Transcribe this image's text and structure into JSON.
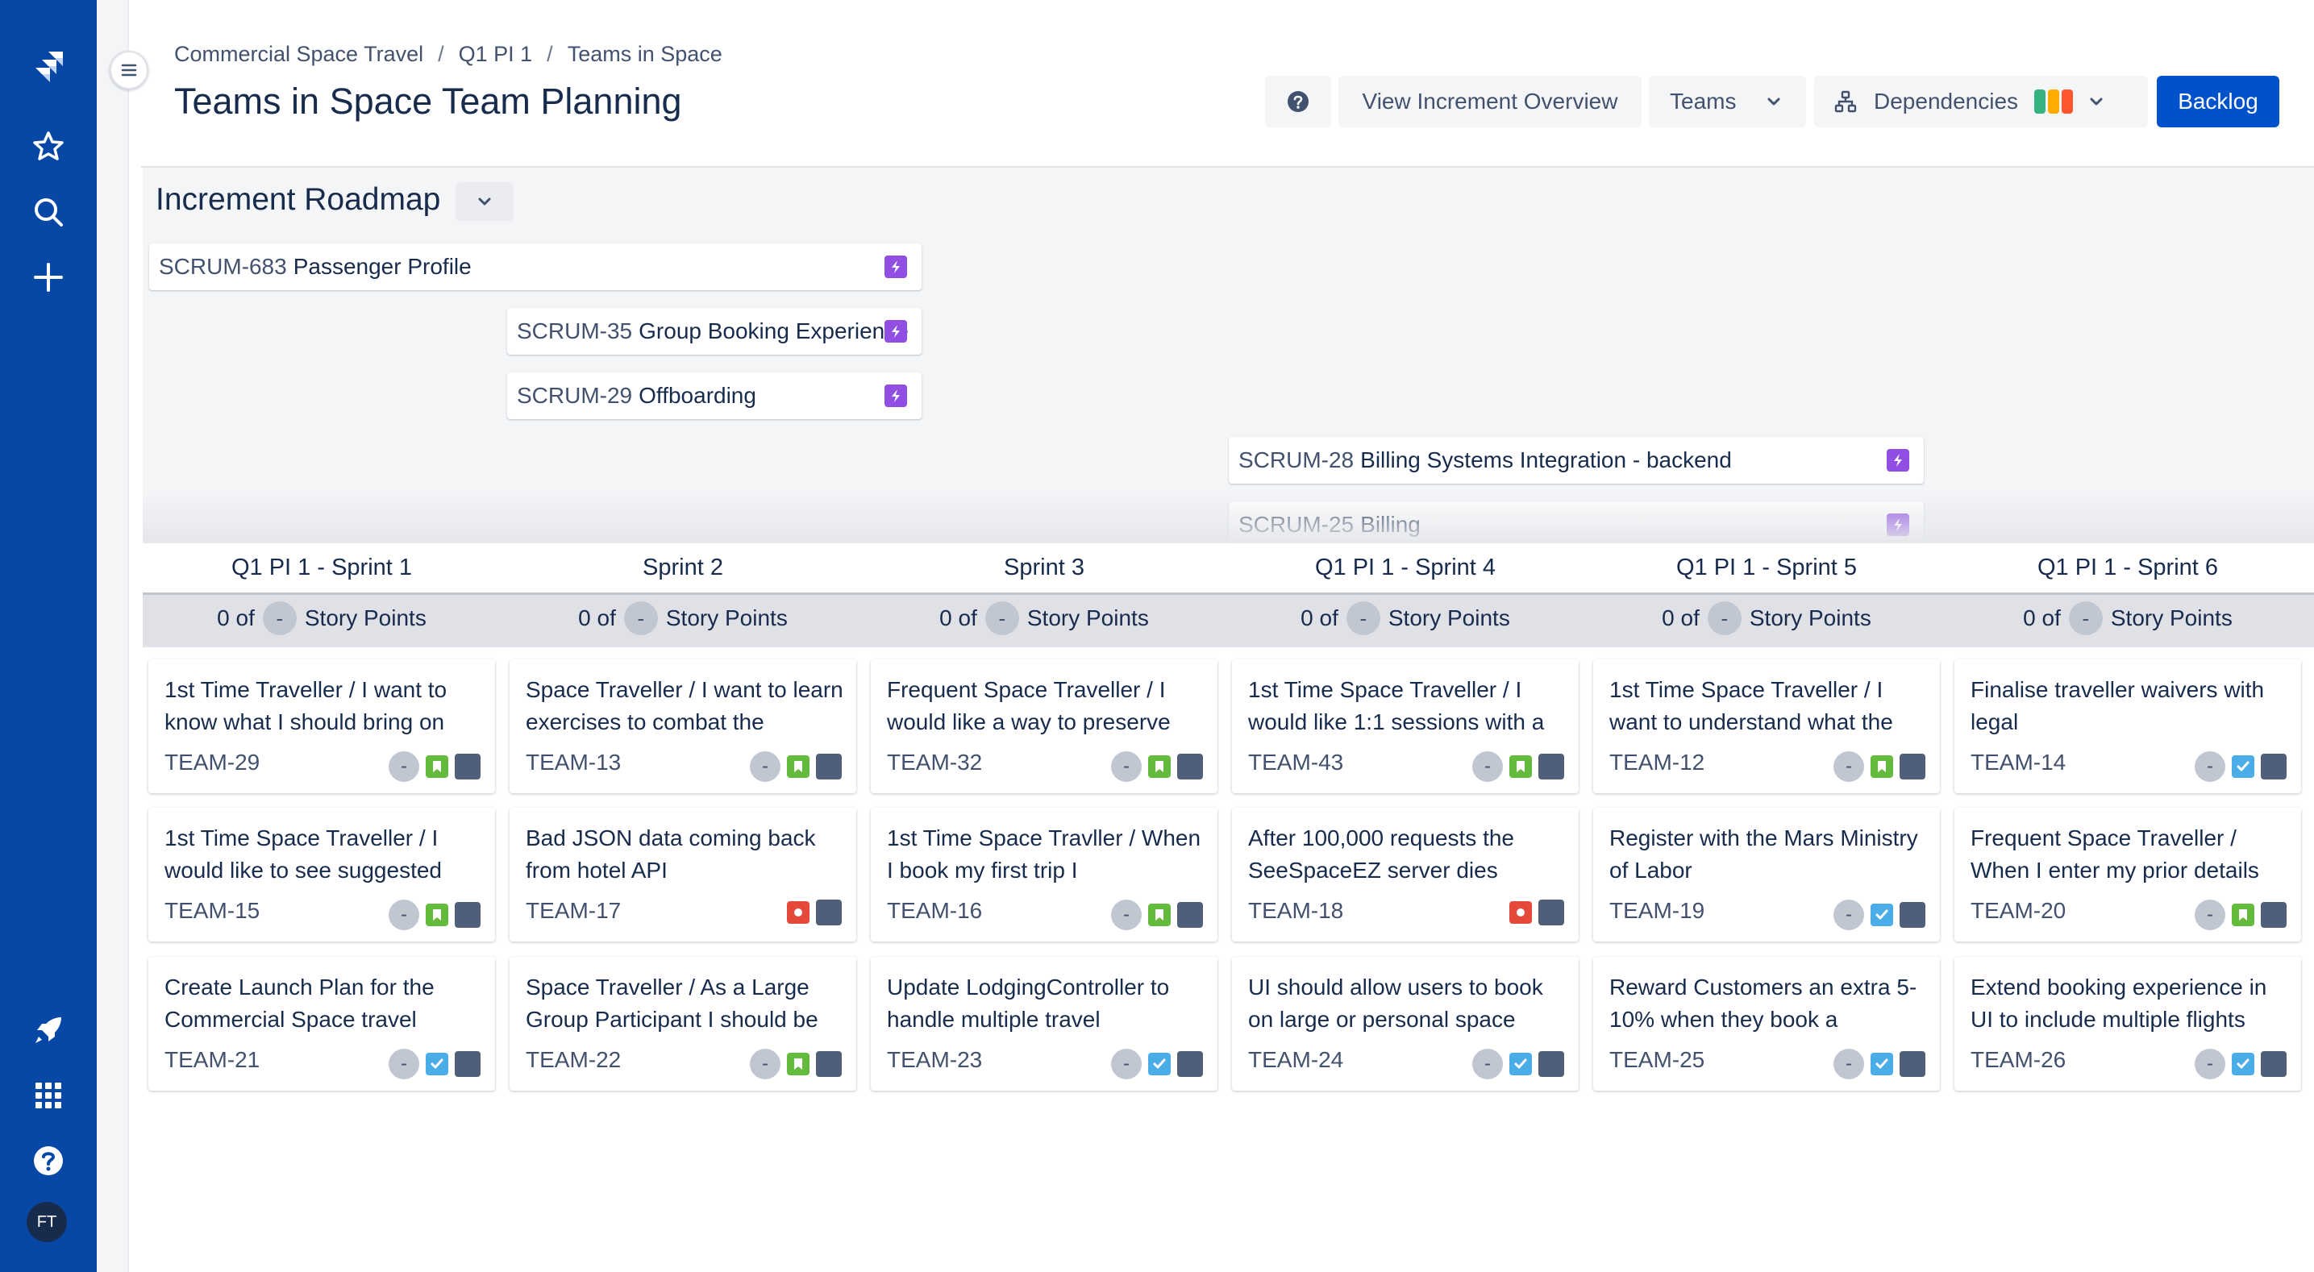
{
  "breadcrumb": [
    "Commercial Space Travel",
    "Q1 PI 1",
    "Teams in Space"
  ],
  "page_title": "Teams in Space Team Planning",
  "header_buttons": {
    "help_icon": "question-icon",
    "overview": "View Increment Overview",
    "teams": "Teams",
    "dependencies": "Dependencies",
    "backlog": "Backlog"
  },
  "dependency_colors": [
    "#36b37e",
    "#ffab00",
    "#ff5630"
  ],
  "accent_color": "#0052cc",
  "nav_color": "#0747a6",
  "avatar_initials": "FT",
  "roadmap": {
    "title": "Increment Roadmap",
    "epics": [
      {
        "key": "SCRUM-683",
        "name": "Passenger Profile"
      },
      {
        "key": "SCRUM-35",
        "name": "Group Booking Experience"
      },
      {
        "key": "SCRUM-29",
        "name": "Offboarding"
      },
      {
        "key": "SCRUM-28",
        "name": "Billing Systems Integration - backend"
      },
      {
        "key": "SCRUM-25",
        "name": "Billing"
      }
    ]
  },
  "points_text": {
    "prefix": "0 of",
    "pill": "-",
    "suffix": "Story Points"
  },
  "sprints": [
    {
      "title": "Q1 PI 1 - Sprint 1",
      "cards": [
        {
          "summary": "1st Time Traveller / I want to know what I should bring on",
          "key": "TEAM-29",
          "est": "-",
          "type": "story"
        },
        {
          "summary": "1st Time Space Traveller / I would like to see suggested",
          "key": "TEAM-15",
          "est": "-",
          "type": "story"
        },
        {
          "summary": "Create Launch Plan for the Commercial Space travel",
          "key": "TEAM-21",
          "est": "-",
          "type": "task"
        }
      ]
    },
    {
      "title": "Sprint 2",
      "cards": [
        {
          "summary": "Space Traveller / I want to learn exercises to combat the",
          "key": "TEAM-13",
          "est": "-",
          "type": "story"
        },
        {
          "summary": "Bad JSON data coming back from hotel API",
          "key": "TEAM-17",
          "est": "",
          "type": "bug"
        },
        {
          "summary": "Space Traveller / As a Large Group Participant I should be",
          "key": "TEAM-22",
          "est": "-",
          "type": "story"
        }
      ]
    },
    {
      "title": "Sprint 3",
      "cards": [
        {
          "summary": "Frequent Space Traveller / I would like a way to preserve",
          "key": "TEAM-32",
          "est": "-",
          "type": "story"
        },
        {
          "summary": "1st Time Space Travller / When I book my first trip I",
          "key": "TEAM-16",
          "est": "-",
          "type": "story"
        },
        {
          "summary": "Update LodgingController to handle multiple travel",
          "key": "TEAM-23",
          "est": "-",
          "type": "task"
        }
      ]
    },
    {
      "title": "Q1 PI 1 - Sprint 4",
      "cards": [
        {
          "summary": "1st Time Space Traveller / I would like 1:1 sessions with a",
          "key": "TEAM-43",
          "est": "-",
          "type": "story"
        },
        {
          "summary": "After 100,000 requests the SeeSpaceEZ server dies",
          "key": "TEAM-18",
          "est": "",
          "type": "bug"
        },
        {
          "summary": "UI should allow users to book on large or personal space",
          "key": "TEAM-24",
          "est": "-",
          "type": "task"
        }
      ]
    },
    {
      "title": "Q1 PI 1 - Sprint 5",
      "cards": [
        {
          "summary": "1st Time Space Traveller / I want to understand what the",
          "key": "TEAM-12",
          "est": "-",
          "type": "story"
        },
        {
          "summary": "Register with the Mars Ministry of Labor",
          "key": "TEAM-19",
          "est": "-",
          "type": "task"
        },
        {
          "summary": "Reward Customers an extra 5-10% when they book a",
          "key": "TEAM-25",
          "est": "-",
          "type": "task"
        }
      ]
    },
    {
      "title": "Q1 PI 1 - Sprint 6",
      "cards": [
        {
          "summary": "Finalise traveller waivers with legal",
          "key": "TEAM-14",
          "est": "-",
          "type": "task"
        },
        {
          "summary": "Frequent Space Traveller / When I enter my prior details",
          "key": "TEAM-20",
          "est": "-",
          "type": "story"
        },
        {
          "summary": "Extend booking experience in UI to include multiple flights",
          "key": "TEAM-26",
          "est": "-",
          "type": "task"
        }
      ]
    }
  ]
}
